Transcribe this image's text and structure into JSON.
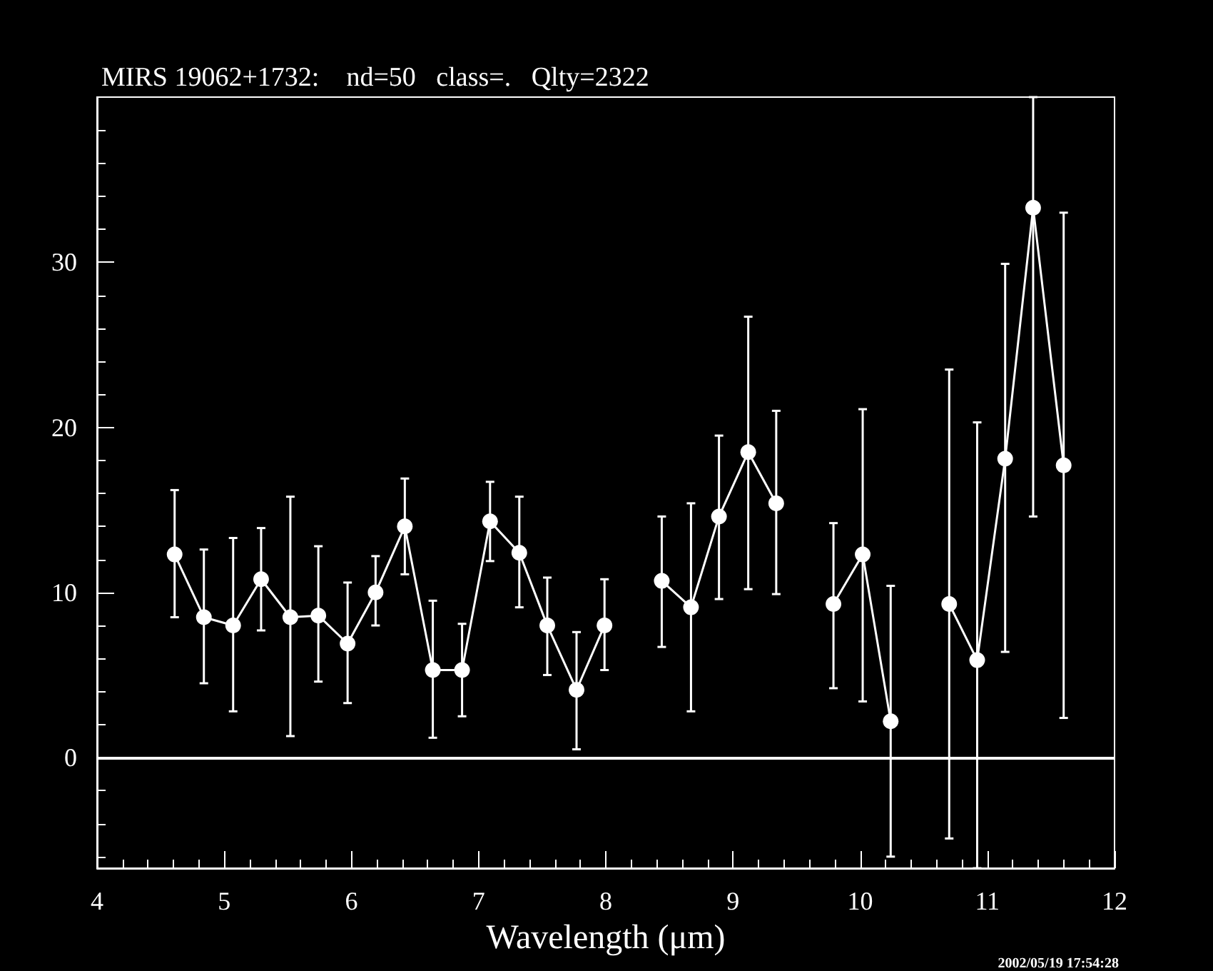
{
  "chart_data": {
    "type": "line",
    "title": "MIRS 19062+1732:    nd=50   class=.   Qlty=2322",
    "xlabel": "Wavelength (μm)",
    "annotations": [
      "2002/05/19 17:54:28"
    ],
    "xlim": [
      4,
      12
    ],
    "ylim": [
      -6.7,
      40
    ],
    "xticks": [
      4,
      {
        "value": 4.2,
        "label": null
      },
      {
        "value": 4.4,
        "label": null
      },
      {
        "value": 4.6,
        "label": null
      },
      {
        "value": 4.8,
        "label": null
      },
      5,
      {
        "value": 5.2,
        "label": null
      },
      {
        "value": 5.4,
        "label": null
      },
      {
        "value": 5.6,
        "label": null
      },
      {
        "value": 5.8,
        "label": null
      },
      6,
      {
        "value": 6.2,
        "label": null
      },
      {
        "value": 6.4,
        "label": null
      },
      {
        "value": 6.6,
        "label": null
      },
      {
        "value": 6.8,
        "label": null
      },
      7,
      {
        "value": 7.2,
        "label": null
      },
      {
        "value": 7.4,
        "label": null
      },
      {
        "value": 7.6,
        "label": null
      },
      {
        "value": 7.8,
        "label": null
      },
      8,
      {
        "value": 8.2,
        "label": null
      },
      {
        "value": 8.4,
        "label": null
      },
      {
        "value": 8.6,
        "label": null
      },
      {
        "value": 8.8,
        "label": null
      },
      9,
      {
        "value": 9.2,
        "label": null
      },
      {
        "value": 9.4,
        "label": null
      },
      {
        "value": 9.6,
        "label": null
      },
      {
        "value": 9.8,
        "label": null
      },
      10,
      {
        "value": 10.2,
        "label": null
      },
      {
        "value": 10.4,
        "label": null
      },
      {
        "value": 10.6,
        "label": null
      },
      {
        "value": 10.8,
        "label": null
      },
      11,
      {
        "value": 11.2,
        "label": null
      },
      {
        "value": 11.4,
        "label": null
      },
      {
        "value": 11.6,
        "label": null
      },
      {
        "value": 11.8,
        "label": null
      },
      12
    ],
    "yticks": [
      {
        "value": -6,
        "label": null
      },
      {
        "value": -4,
        "label": null
      },
      {
        "value": -2,
        "label": null
      },
      0,
      {
        "value": 2,
        "label": null
      },
      {
        "value": 4,
        "label": null
      },
      {
        "value": 6,
        "label": null
      },
      {
        "value": 8,
        "label": null
      },
      10,
      {
        "value": 12,
        "label": null
      },
      {
        "value": 14,
        "label": null
      },
      {
        "value": 16,
        "label": null
      },
      {
        "value": 18,
        "label": null
      },
      20,
      {
        "value": 22,
        "label": null
      },
      {
        "value": 24,
        "label": null
      },
      {
        "value": 26,
        "label": null
      },
      {
        "value": 28,
        "label": null
      },
      30,
      {
        "value": 32,
        "label": null
      },
      {
        "value": 34,
        "label": null
      },
      {
        "value": 36,
        "label": null
      },
      {
        "value": 38,
        "label": null
      }
    ],
    "marker": "circle",
    "line_style": "solid",
    "ref_lines": [
      {
        "axis": "y",
        "value": 0,
        "color": "#ffffff",
        "line_style": "solid"
      }
    ],
    "series": [
      {
        "color": "#ffffff",
        "x": [
          4.61,
          4.84,
          5.07,
          5.29,
          5.52,
          5.74,
          5.97,
          6.19,
          6.42,
          6.64,
          6.87,
          7.09,
          7.32,
          7.54,
          7.77,
          7.99
        ],
        "values": [
          12.3,
          8.5,
          8.0,
          10.8,
          8.5,
          8.6,
          6.9,
          10.0,
          14.0,
          5.3,
          5.3,
          14.3,
          12.4,
          8.0,
          4.1,
          8.0
        ],
        "errors": [
          [
            8.5,
            16.2
          ],
          [
            4.5,
            12.6
          ],
          [
            2.8,
            13.3
          ],
          [
            7.7,
            13.9
          ],
          [
            1.3,
            15.8
          ],
          [
            4.6,
            12.8
          ],
          [
            3.3,
            10.6
          ],
          [
            8.0,
            12.2
          ],
          [
            11.1,
            16.9
          ],
          [
            1.2,
            9.5
          ],
          [
            2.5,
            8.1
          ],
          [
            11.9,
            16.7
          ],
          [
            9.1,
            15.8
          ],
          [
            5.0,
            10.9
          ],
          [
            0.5,
            7.6
          ],
          [
            5.3,
            10.8
          ]
        ]
      },
      {
        "color": "#ffffff",
        "x": [
          8.44,
          8.67,
          8.89,
          9.12,
          9.34
        ],
        "values": [
          10.7,
          9.1,
          14.6,
          18.5,
          15.4
        ],
        "errors": [
          [
            6.7,
            14.6
          ],
          [
            2.8,
            15.4
          ],
          [
            9.6,
            19.5
          ],
          [
            10.2,
            26.7
          ],
          [
            9.9,
            21.0
          ]
        ]
      },
      {
        "color": "#ffffff",
        "x": [
          9.79,
          10.02,
          10.24
        ],
        "values": [
          9.3,
          12.3,
          2.2
        ],
        "errors": [
          [
            4.2,
            14.2
          ],
          [
            3.4,
            21.1
          ],
          [
            -6.0,
            10.4
          ]
        ]
      },
      {
        "color": "#ffffff",
        "x": [
          10.7,
          10.92,
          11.14,
          11.36,
          11.6
        ],
        "values": [
          9.3,
          5.9,
          18.1,
          33.3,
          17.7
        ],
        "errors": [
          [
            -4.9,
            23.5
          ],
          [
            -6.7,
            20.3
          ],
          [
            6.4,
            29.9
          ],
          [
            14.6,
            40
          ],
          [
            2.4,
            33.0
          ]
        ]
      }
    ]
  }
}
